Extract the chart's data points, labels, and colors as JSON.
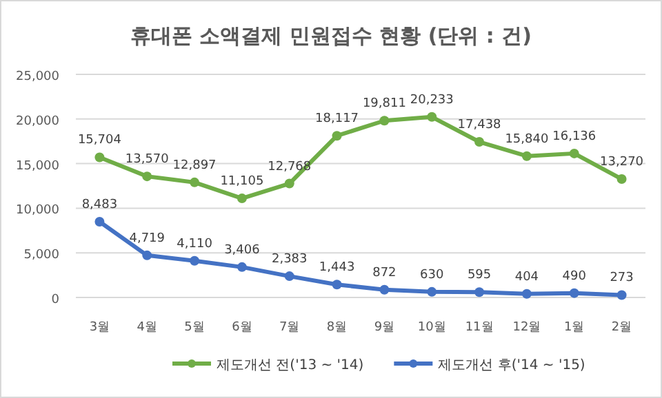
{
  "chart_data": {
    "type": "line",
    "title": "휴대폰 소액결제 민원접수 현황 (단위 : 건)",
    "categories": [
      "3월",
      "4월",
      "5월",
      "6월",
      "7월",
      "8월",
      "9월",
      "10월",
      "11월",
      "12월",
      "1월",
      "2월"
    ],
    "series": [
      {
        "name": "제도개선 전('13 ~ '14)",
        "color": "#70ad47",
        "values": [
          15704,
          13570,
          12897,
          11105,
          12768,
          18117,
          19811,
          20233,
          17438,
          15840,
          16136,
          13270
        ],
        "value_labels": [
          "15,704",
          "13,570",
          "12,897",
          "11,105",
          "12,768",
          "18,117",
          "19,811",
          "20,233",
          "17,438",
          "15,840",
          "16,136",
          "13,270"
        ]
      },
      {
        "name": "제도개선 후('14 ~ '15)",
        "color": "#4472c4",
        "values": [
          8483,
          4719,
          4110,
          3406,
          2383,
          1443,
          872,
          630,
          595,
          404,
          490,
          273
        ],
        "value_labels": [
          "8,483",
          "4,719",
          "4,110",
          "3,406",
          "2,383",
          "1,443",
          "872",
          "630",
          "595",
          "404",
          "490",
          "273"
        ]
      }
    ],
    "ylim": [
      0,
      25000
    ],
    "yticks": [
      {
        "value": 0,
        "label": "0"
      },
      {
        "value": 5000,
        "label": "5,000"
      },
      {
        "value": 10000,
        "label": "10,000"
      },
      {
        "value": 15000,
        "label": "15,000"
      },
      {
        "value": 20000,
        "label": "20,000"
      },
      {
        "value": 25000,
        "label": "25,000"
      }
    ],
    "grid": "y",
    "legend": "bottom",
    "marker": "circle",
    "line_style": "solid"
  }
}
